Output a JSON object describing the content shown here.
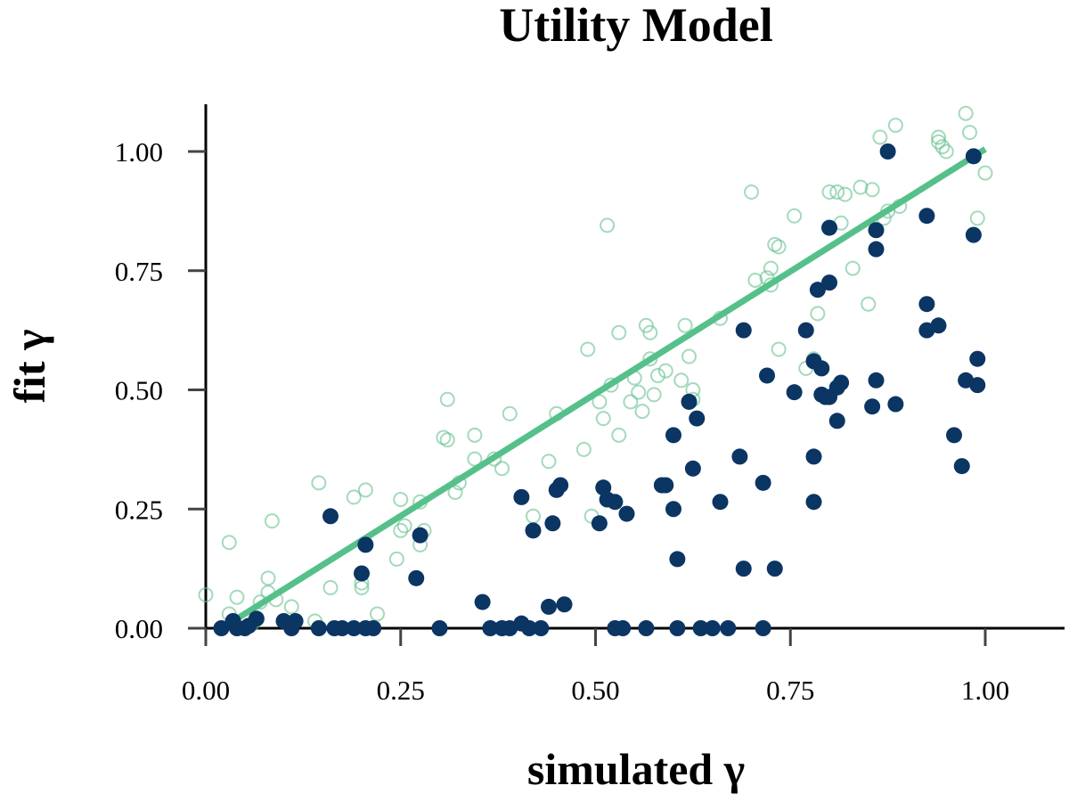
{
  "chart_data": {
    "type": "scatter",
    "title": "Utility Model",
    "xlabel": "simulated γ",
    "ylabel": "fit γ",
    "xlim": [
      0.0,
      1.1
    ],
    "ylim": [
      0.0,
      1.1
    ],
    "x_ticks": [
      0.0,
      0.25,
      0.5,
      0.75,
      1.0
    ],
    "y_ticks": [
      0.0,
      0.25,
      0.5,
      0.75,
      1.0
    ],
    "x_tick_labels": [
      "0.00",
      "0.25",
      "0.50",
      "0.75",
      "1.00"
    ],
    "y_tick_labels": [
      "0.00",
      "0.25",
      "0.50",
      "0.75",
      "1.00"
    ],
    "colors": {
      "hollow": "#66c28e",
      "filled": "#0b3563",
      "fit_line": "#56c08a",
      "axis": "#000000"
    },
    "series": [
      {
        "name": "hollow",
        "marker": "open-circle",
        "points": [
          [
            0.0,
            0.07
          ],
          [
            0.02,
            0.0
          ],
          [
            0.03,
            0.03
          ],
          [
            0.03,
            0.18
          ],
          [
            0.04,
            0.065
          ],
          [
            0.05,
            0.0
          ],
          [
            0.06,
            0.01
          ],
          [
            0.07,
            0.055
          ],
          [
            0.08,
            0.075
          ],
          [
            0.08,
            0.105
          ],
          [
            0.085,
            0.225
          ],
          [
            0.09,
            0.06
          ],
          [
            0.1,
            0.015
          ],
          [
            0.11,
            0.045
          ],
          [
            0.14,
            0.015
          ],
          [
            0.145,
            0.305
          ],
          [
            0.16,
            0.085
          ],
          [
            0.19,
            0.275
          ],
          [
            0.2,
            0.095
          ],
          [
            0.2,
            0.085
          ],
          [
            0.205,
            0.29
          ],
          [
            0.22,
            0.03
          ],
          [
            0.245,
            0.145
          ],
          [
            0.25,
            0.205
          ],
          [
            0.25,
            0.27
          ],
          [
            0.255,
            0.215
          ],
          [
            0.275,
            0.175
          ],
          [
            0.275,
            0.265
          ],
          [
            0.28,
            0.205
          ],
          [
            0.305,
            0.4
          ],
          [
            0.31,
            0.395
          ],
          [
            0.31,
            0.48
          ],
          [
            0.32,
            0.285
          ],
          [
            0.325,
            0.305
          ],
          [
            0.345,
            0.355
          ],
          [
            0.345,
            0.405
          ],
          [
            0.37,
            0.355
          ],
          [
            0.38,
            0.335
          ],
          [
            0.39,
            0.45
          ],
          [
            0.42,
            0.235
          ],
          [
            0.44,
            0.35
          ],
          [
            0.45,
            0.45
          ],
          [
            0.485,
            0.375
          ],
          [
            0.49,
            0.585
          ],
          [
            0.495,
            0.235
          ],
          [
            0.505,
            0.475
          ],
          [
            0.51,
            0.44
          ],
          [
            0.515,
            0.845
          ],
          [
            0.52,
            0.51
          ],
          [
            0.53,
            0.405
          ],
          [
            0.53,
            0.62
          ],
          [
            0.545,
            0.475
          ],
          [
            0.55,
            0.525
          ],
          [
            0.555,
            0.495
          ],
          [
            0.56,
            0.455
          ],
          [
            0.565,
            0.635
          ],
          [
            0.57,
            0.565
          ],
          [
            0.57,
            0.62
          ],
          [
            0.575,
            0.49
          ],
          [
            0.58,
            0.53
          ],
          [
            0.59,
            0.54
          ],
          [
            0.61,
            0.52
          ],
          [
            0.615,
            0.635
          ],
          [
            0.62,
            0.57
          ],
          [
            0.625,
            0.5
          ],
          [
            0.625,
            0.48
          ],
          [
            0.66,
            0.65
          ],
          [
            0.7,
            0.915
          ],
          [
            0.705,
            0.73
          ],
          [
            0.72,
            0.735
          ],
          [
            0.725,
            0.72
          ],
          [
            0.725,
            0.755
          ],
          [
            0.73,
            0.805
          ],
          [
            0.735,
            0.585
          ],
          [
            0.735,
            0.8
          ],
          [
            0.755,
            0.865
          ],
          [
            0.77,
            0.545
          ],
          [
            0.78,
            0.565
          ],
          [
            0.785,
            0.66
          ],
          [
            0.8,
            0.915
          ],
          [
            0.81,
            0.915
          ],
          [
            0.815,
            0.85
          ],
          [
            0.82,
            0.91
          ],
          [
            0.83,
            0.755
          ],
          [
            0.84,
            0.925
          ],
          [
            0.85,
            0.68
          ],
          [
            0.855,
            0.92
          ],
          [
            0.865,
            1.03
          ],
          [
            0.87,
            0.86
          ],
          [
            0.875,
            0.875
          ],
          [
            0.885,
            1.055
          ],
          [
            0.89,
            0.885
          ],
          [
            0.94,
            1.03
          ],
          [
            0.94,
            1.02
          ],
          [
            0.945,
            1.01
          ],
          [
            0.95,
            1.0
          ],
          [
            0.975,
            1.08
          ],
          [
            0.98,
            1.04
          ],
          [
            0.99,
            0.86
          ],
          [
            1.0,
            0.955
          ]
        ]
      },
      {
        "name": "filled",
        "marker": "filled-circle",
        "points": [
          [
            0.02,
            0.0
          ],
          [
            0.035,
            0.015
          ],
          [
            0.04,
            0.0
          ],
          [
            0.05,
            0.0
          ],
          [
            0.055,
            0.005
          ],
          [
            0.065,
            0.02
          ],
          [
            0.1,
            0.015
          ],
          [
            0.11,
            0.0
          ],
          [
            0.115,
            0.015
          ],
          [
            0.145,
            0.0
          ],
          [
            0.16,
            0.235
          ],
          [
            0.165,
            0.0
          ],
          [
            0.175,
            0.0
          ],
          [
            0.19,
            0.0
          ],
          [
            0.2,
            0.115
          ],
          [
            0.205,
            0.0
          ],
          [
            0.205,
            0.175
          ],
          [
            0.215,
            0.0
          ],
          [
            0.27,
            0.105
          ],
          [
            0.275,
            0.195
          ],
          [
            0.3,
            0.0
          ],
          [
            0.355,
            0.055
          ],
          [
            0.365,
            0.0
          ],
          [
            0.38,
            0.0
          ],
          [
            0.39,
            0.0
          ],
          [
            0.405,
            0.01
          ],
          [
            0.405,
            0.275
          ],
          [
            0.415,
            0.0
          ],
          [
            0.42,
            0.205
          ],
          [
            0.43,
            0.0
          ],
          [
            0.44,
            0.045
          ],
          [
            0.445,
            0.22
          ],
          [
            0.45,
            0.29
          ],
          [
            0.455,
            0.3
          ],
          [
            0.46,
            0.05
          ],
          [
            0.505,
            0.22
          ],
          [
            0.51,
            0.295
          ],
          [
            0.515,
            0.27
          ],
          [
            0.525,
            0.0
          ],
          [
            0.525,
            0.265
          ],
          [
            0.535,
            0.0
          ],
          [
            0.54,
            0.24
          ],
          [
            0.565,
            0.0
          ],
          [
            0.585,
            0.3
          ],
          [
            0.59,
            0.3
          ],
          [
            0.6,
            0.405
          ],
          [
            0.6,
            0.25
          ],
          [
            0.605,
            0.145
          ],
          [
            0.605,
            0.0
          ],
          [
            0.62,
            0.475
          ],
          [
            0.625,
            0.335
          ],
          [
            0.63,
            0.44
          ],
          [
            0.635,
            0.0
          ],
          [
            0.65,
            0.0
          ],
          [
            0.66,
            0.265
          ],
          [
            0.67,
            0.0
          ],
          [
            0.685,
            0.36
          ],
          [
            0.69,
            0.625
          ],
          [
            0.69,
            0.125
          ],
          [
            0.715,
            0.0
          ],
          [
            0.715,
            0.305
          ],
          [
            0.72,
            0.53
          ],
          [
            0.73,
            0.125
          ],
          [
            0.755,
            0.495
          ],
          [
            0.77,
            0.625
          ],
          [
            0.78,
            0.56
          ],
          [
            0.78,
            0.265
          ],
          [
            0.78,
            0.36
          ],
          [
            0.785,
            0.71
          ],
          [
            0.79,
            0.545
          ],
          [
            0.79,
            0.49
          ],
          [
            0.795,
            0.485
          ],
          [
            0.8,
            0.84
          ],
          [
            0.8,
            0.725
          ],
          [
            0.8,
            0.485
          ],
          [
            0.81,
            0.505
          ],
          [
            0.81,
            0.435
          ],
          [
            0.815,
            0.515
          ],
          [
            0.855,
            0.465
          ],
          [
            0.86,
            0.835
          ],
          [
            0.86,
            0.795
          ],
          [
            0.86,
            0.52
          ],
          [
            0.875,
            1.0
          ],
          [
            0.885,
            0.47
          ],
          [
            0.925,
            0.865
          ],
          [
            0.925,
            0.68
          ],
          [
            0.925,
            0.625
          ],
          [
            0.94,
            0.635
          ],
          [
            0.96,
            0.405
          ],
          [
            0.97,
            0.34
          ],
          [
            0.975,
            0.52
          ],
          [
            0.985,
            0.99
          ],
          [
            0.985,
            0.825
          ],
          [
            0.99,
            0.565
          ],
          [
            0.99,
            0.51
          ]
        ]
      }
    ],
    "fit_line": {
      "x": [
        0.04,
        1.0
      ],
      "y": [
        0.02,
        1.005
      ]
    }
  }
}
